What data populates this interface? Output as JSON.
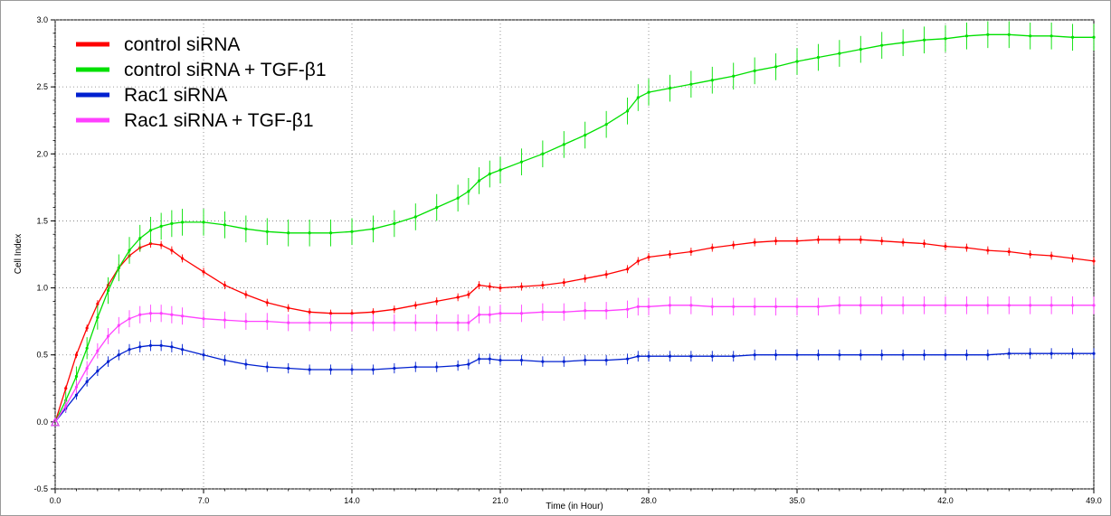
{
  "chart_data": {
    "type": "line",
    "title": "",
    "xlabel": "Time (in Hour)",
    "ylabel": "Cell Index",
    "xlim": [
      0,
      49
    ],
    "ylim": [
      -0.5,
      3.0
    ],
    "xticks": [
      "0.0",
      "7.0",
      "14.0",
      "21.0",
      "28.0",
      "35.0",
      "42.0",
      "49.0"
    ],
    "xtick_values": [
      0,
      7,
      14,
      21,
      28,
      35,
      42,
      49
    ],
    "yticks": [
      "-0.5",
      "0.0",
      "0.5",
      "1.0",
      "1.5",
      "2.0",
      "2.5",
      "3.0"
    ],
    "ytick_values": [
      -0.5,
      0,
      0.5,
      1.0,
      1.5,
      2.0,
      2.5,
      3.0
    ],
    "grid": true,
    "legend_position": "top-left",
    "x": [
      0,
      0.5,
      1,
      1.5,
      2,
      2.5,
      3,
      3.5,
      4,
      4.5,
      5,
      5.5,
      6,
      7,
      8,
      9,
      10,
      11,
      12,
      13,
      14,
      15,
      16,
      17,
      18,
      19,
      19.5,
      20,
      20.5,
      21,
      22,
      23,
      24,
      25,
      26,
      27,
      27.5,
      28,
      29,
      30,
      31,
      32,
      33,
      34,
      35,
      36,
      37,
      38,
      39,
      40,
      41,
      42,
      43,
      44,
      45,
      46,
      47,
      48,
      49
    ],
    "series": [
      {
        "name": "control siRNA",
        "color": "#ff0000",
        "values": [
          0,
          0.25,
          0.5,
          0.7,
          0.88,
          1.02,
          1.15,
          1.24,
          1.3,
          1.33,
          1.32,
          1.28,
          1.22,
          1.12,
          1.02,
          0.95,
          0.89,
          0.85,
          0.82,
          0.81,
          0.81,
          0.82,
          0.84,
          0.87,
          0.9,
          0.93,
          0.95,
          1.02,
          1.01,
          1.0,
          1.01,
          1.02,
          1.04,
          1.07,
          1.1,
          1.14,
          1.2,
          1.23,
          1.25,
          1.27,
          1.3,
          1.32,
          1.34,
          1.35,
          1.35,
          1.36,
          1.36,
          1.36,
          1.35,
          1.34,
          1.33,
          1.31,
          1.3,
          1.28,
          1.27,
          1.25,
          1.24,
          1.22,
          1.2
        ],
        "error": 0.03
      },
      {
        "name": "control siRNA + TGF-β1",
        "color": "#00e000",
        "values": [
          0,
          0.16,
          0.34,
          0.55,
          0.78,
          0.98,
          1.15,
          1.28,
          1.37,
          1.43,
          1.46,
          1.48,
          1.49,
          1.49,
          1.47,
          1.44,
          1.42,
          1.41,
          1.41,
          1.41,
          1.42,
          1.44,
          1.48,
          1.53,
          1.6,
          1.67,
          1.72,
          1.8,
          1.85,
          1.88,
          1.94,
          2.0,
          2.07,
          2.14,
          2.22,
          2.32,
          2.42,
          2.46,
          2.49,
          2.52,
          2.55,
          2.58,
          2.62,
          2.65,
          2.69,
          2.72,
          2.75,
          2.78,
          2.81,
          2.83,
          2.85,
          2.86,
          2.88,
          2.89,
          2.89,
          2.88,
          2.88,
          2.87,
          2.87
        ],
        "error": 0.1
      },
      {
        "name": "Rac1 siRNA",
        "color": "#0020d0",
        "values": [
          0,
          0.1,
          0.2,
          0.3,
          0.38,
          0.45,
          0.5,
          0.54,
          0.56,
          0.57,
          0.57,
          0.56,
          0.54,
          0.5,
          0.46,
          0.43,
          0.41,
          0.4,
          0.39,
          0.39,
          0.39,
          0.39,
          0.4,
          0.41,
          0.41,
          0.42,
          0.43,
          0.47,
          0.47,
          0.46,
          0.46,
          0.45,
          0.45,
          0.46,
          0.46,
          0.47,
          0.49,
          0.49,
          0.49,
          0.49,
          0.49,
          0.49,
          0.5,
          0.5,
          0.5,
          0.5,
          0.5,
          0.5,
          0.5,
          0.5,
          0.5,
          0.5,
          0.5,
          0.5,
          0.51,
          0.51,
          0.51,
          0.51,
          0.51
        ],
        "error": 0.05
      },
      {
        "name": "Rac1 siRNA + TGF-β1",
        "color": "#ff40ff",
        "values": [
          0,
          0.12,
          0.26,
          0.4,
          0.53,
          0.64,
          0.72,
          0.77,
          0.8,
          0.81,
          0.81,
          0.8,
          0.79,
          0.77,
          0.76,
          0.75,
          0.75,
          0.74,
          0.74,
          0.74,
          0.74,
          0.74,
          0.74,
          0.74,
          0.74,
          0.74,
          0.74,
          0.8,
          0.8,
          0.81,
          0.81,
          0.82,
          0.82,
          0.83,
          0.83,
          0.84,
          0.86,
          0.86,
          0.87,
          0.87,
          0.86,
          0.86,
          0.86,
          0.86,
          0.86,
          0.86,
          0.87,
          0.87,
          0.87,
          0.87,
          0.87,
          0.87,
          0.87,
          0.87,
          0.87,
          0.87,
          0.87,
          0.87,
          0.87
        ],
        "error": 0.07
      }
    ]
  }
}
